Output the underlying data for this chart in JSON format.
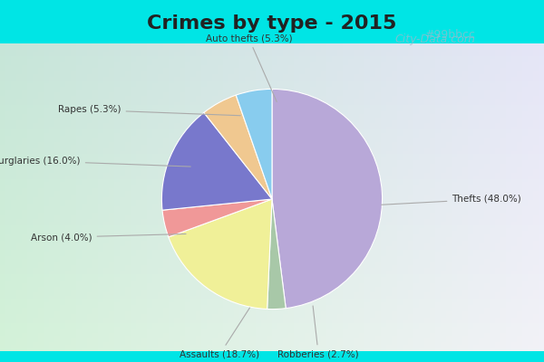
{
  "title": "Crimes by type - 2015",
  "title_fontsize": 16,
  "title_fontweight": "bold",
  "labels": [
    "Thefts",
    "Robberies",
    "Assaults",
    "Arson",
    "Burglaries",
    "Rapes",
    "Auto thefts"
  ],
  "values": [
    48.0,
    2.7,
    18.7,
    4.0,
    16.0,
    5.3,
    5.3
  ],
  "colors": [
    "#b8a8d8",
    "#a8c8a8",
    "#f0f098",
    "#f09898",
    "#7878cc",
    "#f0c890",
    "#88ccee"
  ],
  "cyan_bar_color": "#00e5e5",
  "chart_bg_top_left": "#b8e8d8",
  "chart_bg_bottom_right": "#d8e8f0",
  "watermark_color": "#99bbcc",
  "label_color": "#333333",
  "figsize": [
    6.0,
    4.0
  ],
  "dpi": 100
}
